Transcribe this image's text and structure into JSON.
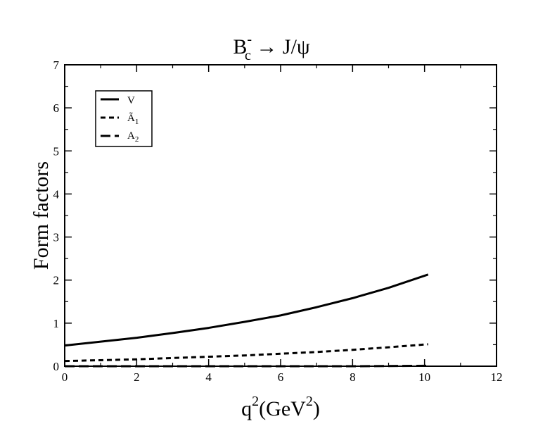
{
  "chart_data": {
    "type": "line",
    "title": {
      "base": "B",
      "sub": "c",
      "sup": "-",
      "rest": " → J/ψ"
    },
    "xlabel": {
      "base": "q",
      "sup": "2",
      "mid": "(GeV",
      "sup2": "2",
      "end": ")"
    },
    "ylabel": "Form factors",
    "xlim": [
      0,
      12
    ],
    "ylim": [
      0,
      7
    ],
    "xticks": [
      0,
      2,
      4,
      6,
      8,
      10,
      12
    ],
    "yticks": [
      0,
      1,
      2,
      3,
      4,
      5,
      6,
      7
    ],
    "grid": false,
    "legend_position": "top-left",
    "series": [
      {
        "name": "V",
        "label": {
          "base": "V",
          "sub": ""
        },
        "style": "solid",
        "x": [
          0,
          1,
          2,
          3,
          4,
          5,
          6,
          7,
          8,
          9,
          10.1
        ],
        "y": [
          0.48,
          0.57,
          0.66,
          0.77,
          0.89,
          1.03,
          1.18,
          1.37,
          1.58,
          1.82,
          2.13
        ]
      },
      {
        "name": "Ã1",
        "label": {
          "base": "Ã",
          "sub": "1"
        },
        "style": "dashed",
        "x": [
          0,
          1,
          2,
          3,
          4,
          5,
          6,
          7,
          8,
          9,
          10.1
        ],
        "y": [
          0.12,
          0.14,
          0.16,
          0.19,
          0.22,
          0.25,
          0.29,
          0.33,
          0.38,
          0.44,
          0.51
        ]
      },
      {
        "name": "A2",
        "label": {
          "base": "A",
          "sub": "2"
        },
        "style": "longdash",
        "x": [
          0,
          2,
          4,
          6,
          8,
          10.1
        ],
        "y": [
          0.0,
          0.0,
          0.0,
          0.0,
          0.0,
          0.01
        ]
      }
    ]
  }
}
